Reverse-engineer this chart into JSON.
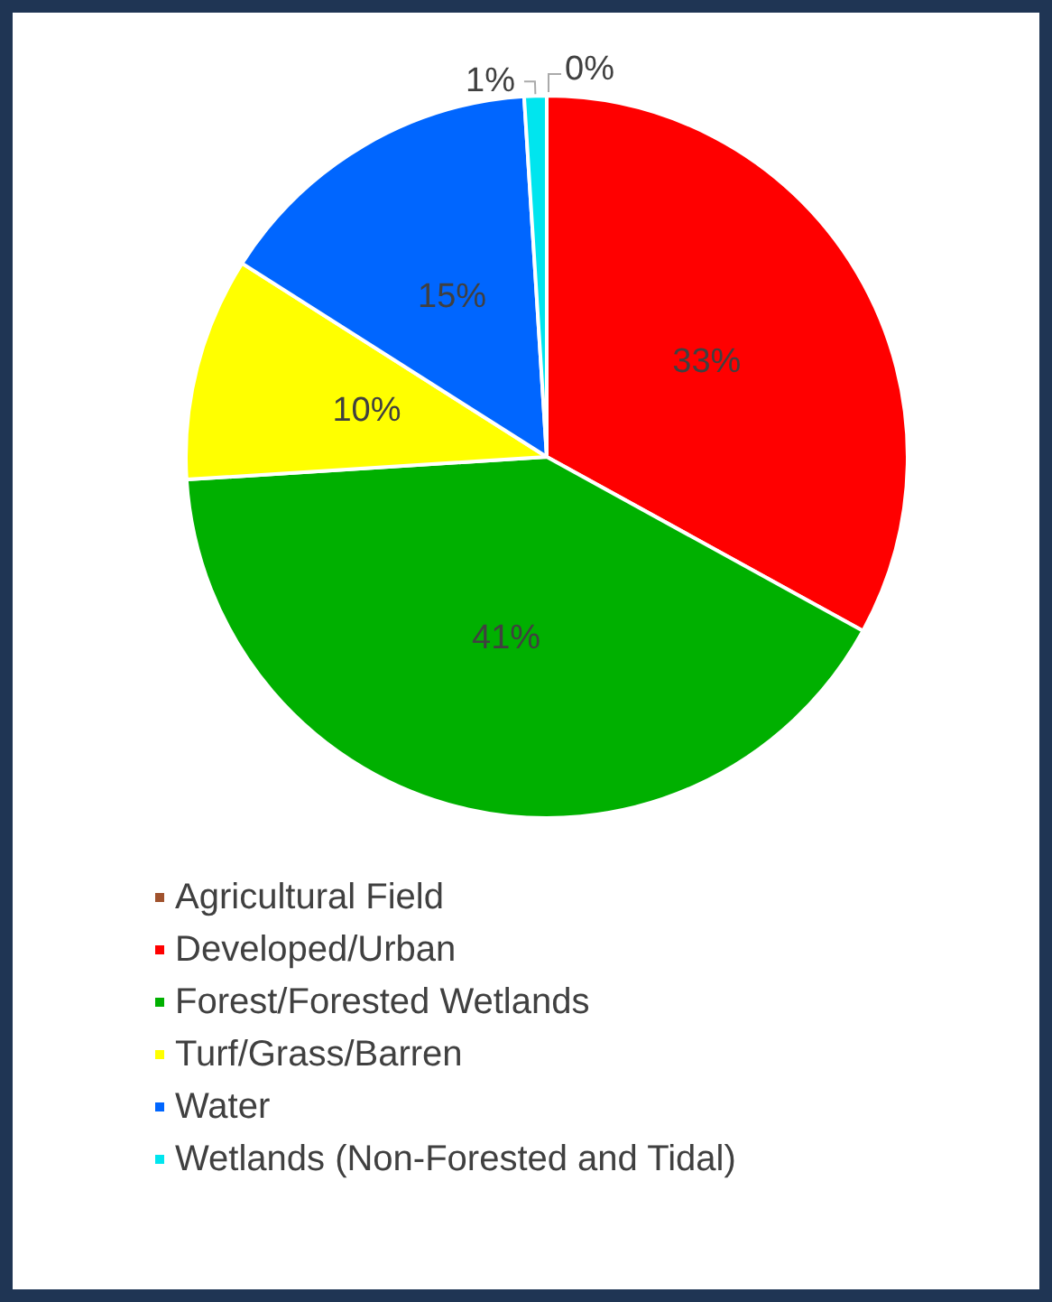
{
  "chart_data": {
    "type": "pie",
    "categories": [
      "Agricultural Field",
      "Developed/Urban",
      "Forest/Forested Wetlands",
      "Turf/Grass/Barren",
      "Water",
      "Wetlands (Non-Forested and Tidal)"
    ],
    "values": [
      0,
      33,
      41,
      10,
      15,
      1
    ],
    "colors": [
      "#a0522d",
      "#ff0000",
      "#00b000",
      "#ffff00",
      "#0066ff",
      "#00e5ee"
    ],
    "value_labels": [
      "0%",
      "33%",
      "41%",
      "10%",
      "15%",
      "1%"
    ],
    "legend": "bottom"
  }
}
